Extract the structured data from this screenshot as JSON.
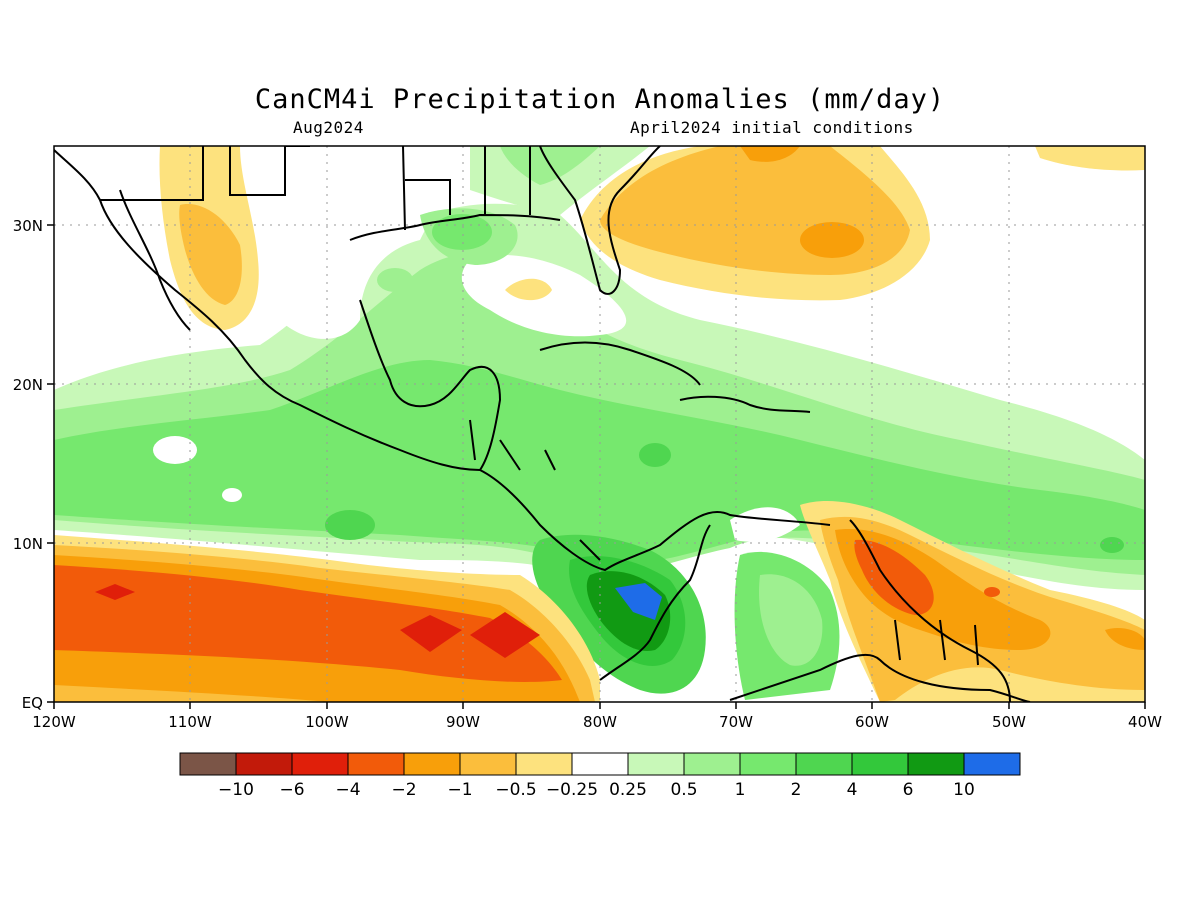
{
  "title": "CanCM4i Precipitation Anomalies (mm/day)",
  "subtitle_left": "Aug2024",
  "subtitle_right": "April2024 initial conditions",
  "map": {
    "lon_ticks": [
      "120W",
      "110W",
      "100W",
      "90W",
      "80W",
      "70W",
      "60W",
      "50W",
      "40W"
    ],
    "lat_ticks": [
      "EQ",
      "10N",
      "20N",
      "30N"
    ],
    "lon_range": [
      -120,
      -40
    ],
    "lat_range": [
      0,
      35
    ],
    "grid": "dotted"
  },
  "colorbar": {
    "colors": [
      "#7b5547",
      "#c21a0a",
      "#e01f0a",
      "#f25b0a",
      "#f89f0a",
      "#fbbe3c",
      "#fde27e",
      "#ffffff",
      "#c8f8b8",
      "#9ef090",
      "#76e86e",
      "#4fd650",
      "#33c83b",
      "#119a13",
      "#1e6ce8"
    ],
    "labels": [
      "−10",
      "−6",
      "−4",
      "−2",
      "−1",
      "−0.5",
      "−0.25",
      "0.25",
      "0.5",
      "1",
      "2",
      "4",
      "6",
      "10"
    ]
  }
}
